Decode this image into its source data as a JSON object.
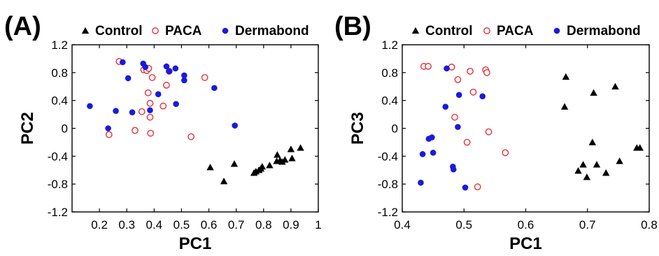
{
  "chart_data": [
    {
      "type": "scatter",
      "panel_label": "(A)",
      "xlabel": "PC1",
      "ylabel": "PC2",
      "xlim": [
        0.1,
        1.0
      ],
      "ylim": [
        -1.2,
        1.2
      ],
      "xticks": [
        0.2,
        0.3,
        0.4,
        0.5,
        0.6,
        0.7,
        0.8,
        0.9,
        1.0
      ],
      "xtick_labels": [
        "0.2",
        "0.3",
        "0.4",
        "0.5",
        "0.6",
        "0.7",
        "0.8",
        "0.9",
        "1"
      ],
      "yticks": [
        1.2,
        0.8,
        0.4,
        0,
        -0.4,
        -0.8,
        -1.2
      ],
      "ytick_labels": [
        "1.2",
        "0.8",
        "0.4",
        "0",
        "-0.4",
        "-0.8",
        "-1.2"
      ],
      "grid": false,
      "legend_position": "top",
      "series": [
        {
          "name": "Control",
          "marker": "filled-triangle",
          "color": "#000000",
          "points": [
            [
              0.605,
              -0.56
            ],
            [
              0.655,
              -0.76
            ],
            [
              0.693,
              -0.51
            ],
            [
              0.765,
              -0.64
            ],
            [
              0.772,
              -0.62
            ],
            [
              0.783,
              -0.6
            ],
            [
              0.79,
              -0.58
            ],
            [
              0.795,
              -0.55
            ],
            [
              0.822,
              -0.53
            ],
            [
              0.848,
              -0.47
            ],
            [
              0.85,
              -0.38
            ],
            [
              0.86,
              -0.46
            ],
            [
              0.868,
              -0.48
            ],
            [
              0.878,
              -0.45
            ],
            [
              0.9,
              -0.3
            ],
            [
              0.904,
              -0.43
            ],
            [
              0.935,
              -0.28
            ]
          ]
        },
        {
          "name": "PACA",
          "marker": "open-circle",
          "color": "#e8252b",
          "points": [
            [
              0.235,
              -0.09
            ],
            [
              0.272,
              0.96
            ],
            [
              0.33,
              -0.03
            ],
            [
              0.355,
              0.24
            ],
            [
              0.362,
              0.84
            ],
            [
              0.373,
              0.83
            ],
            [
              0.378,
              0.51
            ],
            [
              0.38,
              0.86
            ],
            [
              0.385,
              0.36
            ],
            [
              0.385,
              0.16
            ],
            [
              0.387,
              -0.07
            ],
            [
              0.393,
              0.73
            ],
            [
              0.433,
              0.32
            ],
            [
              0.445,
              0.62
            ],
            [
              0.455,
              0.82
            ],
            [
              0.585,
              0.73
            ],
            [
              0.535,
              -0.12
            ]
          ]
        },
        {
          "name": "Dermabond",
          "marker": "filled-circle",
          "color": "#1a1adb",
          "points": [
            [
              0.165,
              0.32
            ],
            [
              0.232,
              0.0
            ],
            [
              0.26,
              0.25
            ],
            [
              0.285,
              0.95
            ],
            [
              0.305,
              0.72
            ],
            [
              0.32,
              0.23
            ],
            [
              0.36,
              0.93
            ],
            [
              0.368,
              0.88
            ],
            [
              0.385,
              0.26
            ],
            [
              0.415,
              0.49
            ],
            [
              0.445,
              0.89
            ],
            [
              0.455,
              0.82
            ],
            [
              0.478,
              0.86
            ],
            [
              0.48,
              0.35
            ],
            [
              0.51,
              0.76
            ],
            [
              0.51,
              0.69
            ],
            [
              0.62,
              0.58
            ],
            [
              0.695,
              0.04
            ]
          ]
        }
      ]
    },
    {
      "type": "scatter",
      "panel_label": "(B)",
      "xlabel": "PC1",
      "ylabel": "PC3",
      "xlim": [
        0.4,
        0.8
      ],
      "ylim": [
        -1.2,
        1.2
      ],
      "xticks": [
        0.4,
        0.5,
        0.6,
        0.7,
        0.8
      ],
      "xtick_labels": [
        "0.4",
        "0.5",
        "0.6",
        "0.7",
        "0.8"
      ],
      "yticks": [
        1.2,
        0.8,
        0.4,
        0,
        -0.4,
        -0.8,
        -1.2
      ],
      "ytick_labels": [
        "1.2",
        "0.8",
        "0.4",
        "0",
        "-0.4",
        "-0.8",
        "-1.2"
      ],
      "grid": false,
      "legend_position": "top",
      "series": [
        {
          "name": "Control",
          "marker": "filled-triangle",
          "color": "#000000",
          "points": [
            [
              0.663,
              0.31
            ],
            [
              0.665,
              0.74
            ],
            [
              0.685,
              -0.61
            ],
            [
              0.693,
              -0.52
            ],
            [
              0.699,
              -0.7
            ],
            [
              0.708,
              -0.2
            ],
            [
              0.71,
              0.51
            ],
            [
              0.715,
              -0.52
            ],
            [
              0.73,
              -0.64
            ],
            [
              0.745,
              0.6
            ],
            [
              0.752,
              -0.47
            ],
            [
              0.78,
              -0.28
            ],
            [
              0.785,
              -0.28
            ]
          ]
        },
        {
          "name": "PACA",
          "marker": "open-circle",
          "color": "#e8252b",
          "points": [
            [
              0.435,
              0.89
            ],
            [
              0.442,
              0.89
            ],
            [
              0.48,
              0.88
            ],
            [
              0.485,
              0.16
            ],
            [
              0.49,
              0.7
            ],
            [
              0.505,
              -0.2
            ],
            [
              0.51,
              0.82
            ],
            [
              0.515,
              0.52
            ],
            [
              0.522,
              -0.84
            ],
            [
              0.535,
              0.84
            ],
            [
              0.537,
              0.8
            ],
            [
              0.54,
              -0.05
            ],
            [
              0.567,
              -0.35
            ]
          ]
        },
        {
          "name": "Dermabond",
          "marker": "filled-circle",
          "color": "#1a1adb",
          "points": [
            [
              0.43,
              -0.78
            ],
            [
              0.433,
              -0.37
            ],
            [
              0.443,
              -0.15
            ],
            [
              0.448,
              -0.13
            ],
            [
              0.45,
              -0.35
            ],
            [
              0.47,
              0.31
            ],
            [
              0.472,
              0.86
            ],
            [
              0.482,
              -0.55
            ],
            [
              0.483,
              -0.59
            ],
            [
              0.49,
              0.02
            ],
            [
              0.492,
              0.48
            ],
            [
              0.502,
              -0.85
            ],
            [
              0.53,
              0.46
            ]
          ]
        }
      ]
    }
  ],
  "colors": {
    "control": "#000000",
    "paca": "#e8252b",
    "dermabond": "#1a1adb",
    "frame": "#000000"
  }
}
